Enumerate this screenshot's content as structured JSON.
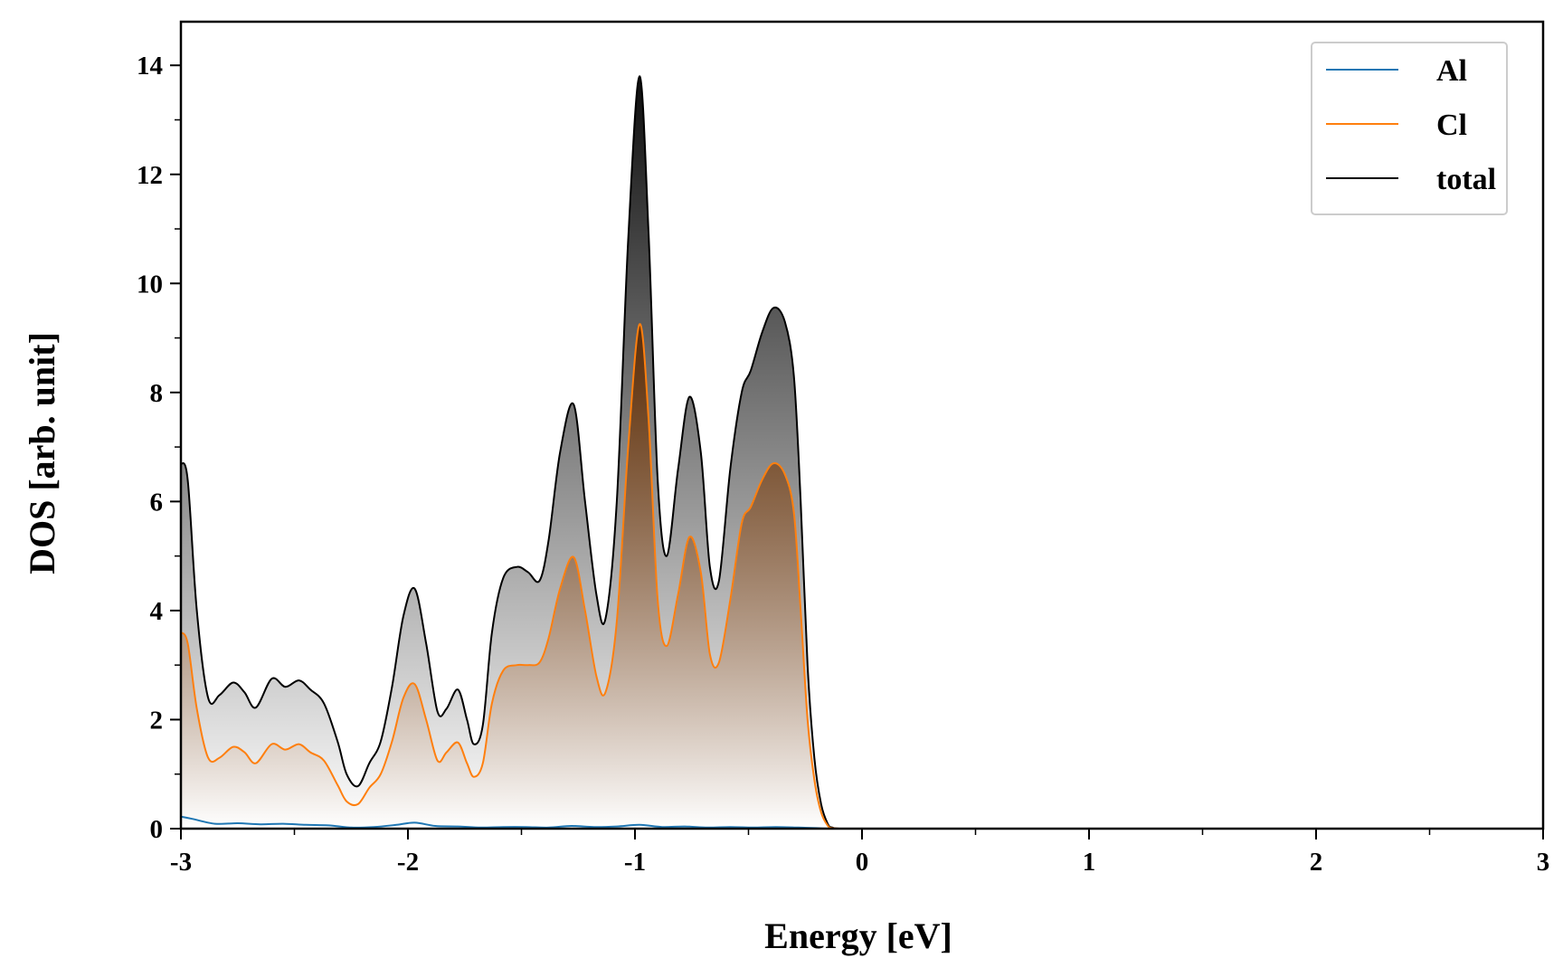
{
  "chart_data": {
    "type": "area",
    "xlabel": "Energy [eV]",
    "ylabel": "DOS [arb. unit]",
    "xlim": [
      -3,
      3
    ],
    "ylim": [
      0,
      14.8
    ],
    "x_ticks": [
      -3,
      -2,
      -1,
      0,
      1,
      2,
      3
    ],
    "x_tick_labels": [
      "-3",
      "-2",
      "-1",
      "0",
      "1",
      "2",
      "3"
    ],
    "y_ticks": [
      0,
      2,
      4,
      6,
      8,
      10,
      12,
      14
    ],
    "y_tick_labels": [
      "0",
      "2",
      "4",
      "6",
      "8",
      "10",
      "12",
      "14"
    ],
    "grid": false,
    "legend_position": "top-right",
    "series": [
      {
        "name": "Al",
        "color": "#1f77b4",
        "fill": false,
        "x": [
          -3.0,
          -2.95,
          -2.85,
          -2.75,
          -2.65,
          -2.55,
          -2.45,
          -2.35,
          -2.25,
          -2.15,
          -2.05,
          -1.97,
          -1.88,
          -1.78,
          -1.68,
          -1.58,
          -1.48,
          -1.38,
          -1.28,
          -1.18,
          -1.08,
          -0.98,
          -0.88,
          -0.78,
          -0.68,
          -0.58,
          -0.48,
          -0.38,
          -0.28,
          -0.2,
          -0.15,
          -0.1,
          0.0,
          3.0
        ],
        "values": [
          0.22,
          0.18,
          0.09,
          0.1,
          0.08,
          0.09,
          0.07,
          0.06,
          0.02,
          0.03,
          0.07,
          0.11,
          0.05,
          0.04,
          0.02,
          0.03,
          0.03,
          0.02,
          0.05,
          0.03,
          0.04,
          0.07,
          0.03,
          0.04,
          0.02,
          0.03,
          0.02,
          0.03,
          0.02,
          0.01,
          0.0,
          0.0,
          0.0,
          0.0
        ]
      },
      {
        "name": "Cl",
        "color": "#ff7f0e",
        "fill": true,
        "x": [
          -3.0,
          -2.97,
          -2.93,
          -2.88,
          -2.83,
          -2.77,
          -2.72,
          -2.67,
          -2.6,
          -2.54,
          -2.48,
          -2.43,
          -2.37,
          -2.31,
          -2.27,
          -2.22,
          -2.17,
          -2.12,
          -2.07,
          -2.02,
          -1.97,
          -1.92,
          -1.87,
          -1.83,
          -1.78,
          -1.74,
          -1.71,
          -1.67,
          -1.63,
          -1.58,
          -1.52,
          -1.47,
          -1.42,
          -1.38,
          -1.33,
          -1.27,
          -1.22,
          -1.17,
          -1.13,
          -1.08,
          -1.03,
          -0.98,
          -0.94,
          -0.9,
          -0.86,
          -0.81,
          -0.76,
          -0.71,
          -0.67,
          -0.63,
          -0.58,
          -0.53,
          -0.49,
          -0.44,
          -0.39,
          -0.34,
          -0.3,
          -0.27,
          -0.24,
          -0.21,
          -0.18,
          -0.15,
          -0.13,
          -0.1,
          0.0,
          3.0
        ],
        "values": [
          3.6,
          3.4,
          2.2,
          1.3,
          1.3,
          1.5,
          1.4,
          1.2,
          1.55,
          1.45,
          1.55,
          1.4,
          1.25,
          0.8,
          0.5,
          0.45,
          0.75,
          1.0,
          1.6,
          2.4,
          2.65,
          2.0,
          1.25,
          1.4,
          1.58,
          1.2,
          0.95,
          1.2,
          2.3,
          2.9,
          3.0,
          3.0,
          3.05,
          3.5,
          4.4,
          4.98,
          4.0,
          2.8,
          2.5,
          3.8,
          7.0,
          9.25,
          7.5,
          4.2,
          3.35,
          4.3,
          5.35,
          4.7,
          3.2,
          3.05,
          4.2,
          5.6,
          5.9,
          6.4,
          6.7,
          6.5,
          5.8,
          4.0,
          2.0,
          0.9,
          0.3,
          0.05,
          0.01,
          0.0,
          0.0,
          0.0
        ]
      },
      {
        "name": "total",
        "color": "#000000",
        "fill": true,
        "x": [
          -3.0,
          -2.97,
          -2.93,
          -2.88,
          -2.83,
          -2.77,
          -2.72,
          -2.67,
          -2.6,
          -2.54,
          -2.48,
          -2.43,
          -2.37,
          -2.31,
          -2.27,
          -2.22,
          -2.17,
          -2.12,
          -2.07,
          -2.02,
          -1.97,
          -1.92,
          -1.87,
          -1.83,
          -1.78,
          -1.74,
          -1.71,
          -1.67,
          -1.63,
          -1.58,
          -1.52,
          -1.47,
          -1.42,
          -1.38,
          -1.33,
          -1.27,
          -1.22,
          -1.17,
          -1.13,
          -1.08,
          -1.03,
          -0.98,
          -0.94,
          -0.9,
          -0.86,
          -0.81,
          -0.76,
          -0.71,
          -0.67,
          -0.63,
          -0.58,
          -0.53,
          -0.49,
          -0.44,
          -0.39,
          -0.34,
          -0.3,
          -0.27,
          -0.24,
          -0.21,
          -0.18,
          -0.15,
          -0.13,
          -0.1,
          0.0,
          3.0
        ],
        "values": [
          6.7,
          6.4,
          4.0,
          2.4,
          2.45,
          2.68,
          2.5,
          2.22,
          2.75,
          2.6,
          2.72,
          2.55,
          2.3,
          1.6,
          1.0,
          0.78,
          1.2,
          1.6,
          2.6,
          3.9,
          4.4,
          3.4,
          2.15,
          2.2,
          2.55,
          2.0,
          1.55,
          1.9,
          3.6,
          4.6,
          4.8,
          4.7,
          4.55,
          5.3,
          6.9,
          7.78,
          6.0,
          4.3,
          3.85,
          6.0,
          10.8,
          13.8,
          10.9,
          6.4,
          5.0,
          6.6,
          7.92,
          6.9,
          4.8,
          4.55,
          6.6,
          8.0,
          8.4,
          9.1,
          9.55,
          9.3,
          8.3,
          6.0,
          3.0,
          1.3,
          0.45,
          0.08,
          0.02,
          0.0,
          0.0,
          0.0
        ]
      }
    ]
  }
}
